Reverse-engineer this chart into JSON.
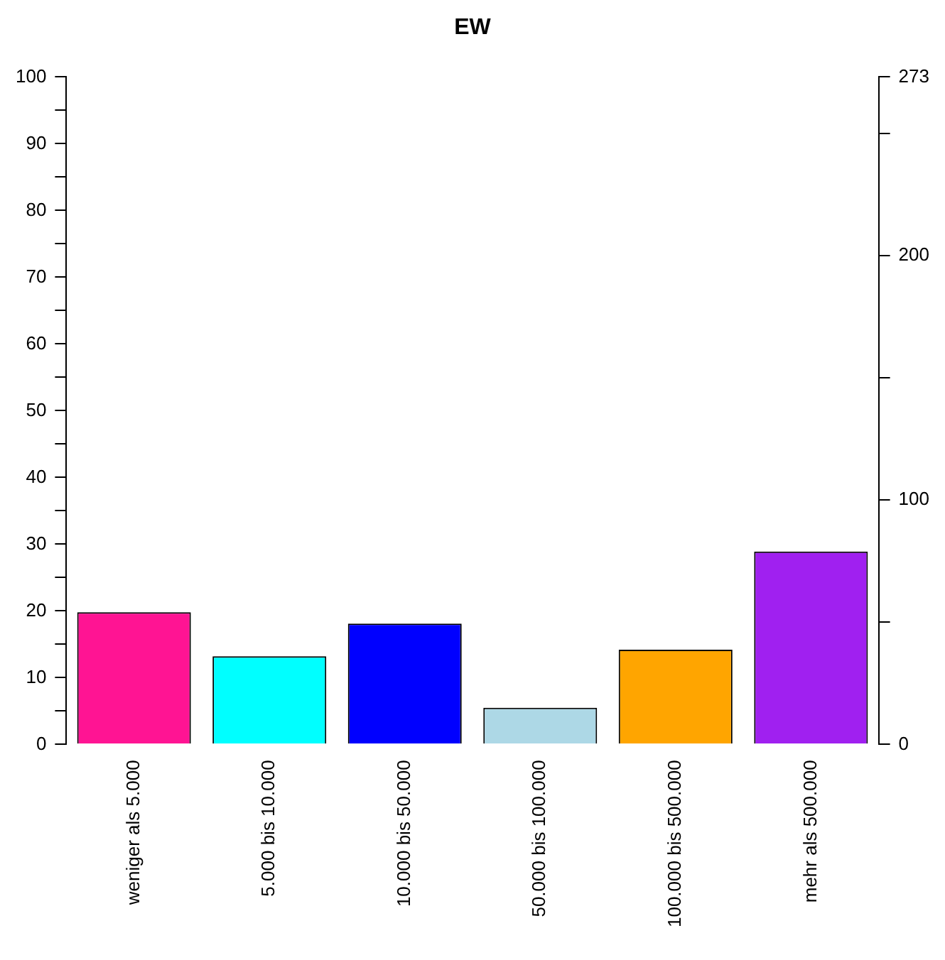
{
  "chart_data": {
    "type": "bar",
    "title": "EW",
    "categories": [
      "weniger als 5.000",
      "5.000 bis 10.000",
      "10.000 bis 50.000",
      "50.000 bis 100.000",
      "100.000 bis 500.000",
      "mehr als 500.000"
    ],
    "values": [
      19.8,
      13.2,
      18.1,
      5.5,
      14.2,
      28.9
    ],
    "colors": [
      "#ff1493",
      "#00ffff",
      "#0000ff",
      "#add8e6",
      "#ffa500",
      "#a020f0"
    ],
    "ylim": [
      0,
      100
    ],
    "yticks": [
      0,
      {
        "value": 5,
        "label": null
      },
      10,
      {
        "value": 15,
        "label": null
      },
      20,
      {
        "value": 25,
        "label": null
      },
      30,
      {
        "value": 35,
        "label": null
      },
      40,
      {
        "value": 45,
        "label": null
      },
      50,
      {
        "value": 55,
        "label": null
      },
      60,
      {
        "value": 65,
        "label": null
      },
      70,
      {
        "value": 75,
        "label": null
      },
      80,
      {
        "value": 85,
        "label": null
      },
      90,
      {
        "value": 95,
        "label": null
      },
      100
    ],
    "y2lim": [
      0,
      273
    ],
    "y2ticks": [
      0,
      {
        "value": 50,
        "label": null
      },
      100,
      {
        "value": 150,
        "label": null
      },
      200,
      {
        "value": 250,
        "label": null
      },
      273
    ],
    "grid": false,
    "legend": false
  }
}
